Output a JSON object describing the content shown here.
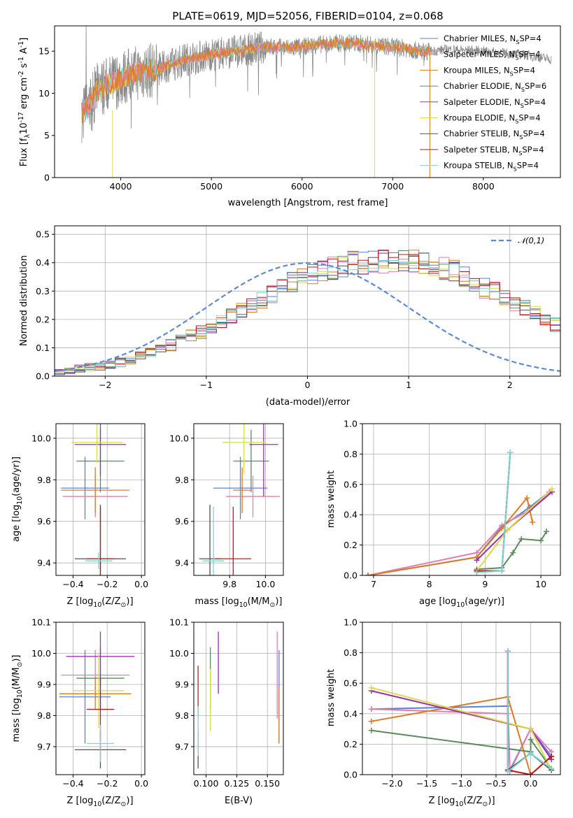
{
  "colors": {
    "Chabrier MILES": "#5b7fd6",
    "Salpeter MILES": "#e07fb0",
    "Kroupa MILES": "#dd7a22",
    "Chabrier ELODIE": "#5b8a5b",
    "Salpeter ELODIE": "#9a30b0",
    "Kroupa ELODIE": "#dada4a",
    "Chabrier STELIB": "#505050",
    "Salpeter STELIB": "#c01818",
    "Kroupa STELIB": "#7ad6d6"
  },
  "chart_data": [
    {
      "type": "line",
      "title": "PLATE=0619, MJD=52056, FIBERID=0104, z=0.068",
      "xlabel": "wavelength [Angstrom, rest frame]",
      "ylabel": "Flux [f_λ10^{-17} erg cm^{-2} s^{-1} A^{-1}]",
      "xlim": [
        3270,
        8850
      ],
      "ylim": [
        0,
        18
      ],
      "xticks": [
        4000,
        5000,
        6000,
        7000,
        8000
      ],
      "yticks": [
        0,
        5,
        10,
        15
      ],
      "legend": [
        "Chabrier MILES, N_SSP=4",
        "Salpeter MILES, N_SSP=4",
        "Kroupa MILES, N_SSP=4",
        "Chabrier ELODIE, N_SSP=6",
        "Salpeter ELODIE, N_SSP=4",
        "Kroupa ELODIE, N_SSP=4",
        "Chabrier STELIB, N_SSP=4",
        "Salpeter STELIB, N_SSP=4",
        "Kroupa STELIB, N_SSP=4"
      ],
      "legend_placement": "right",
      "spectrum_continuum": [
        [
          3570,
          7.5
        ],
        [
          3650,
          8.5
        ],
        [
          3750,
          10.5
        ],
        [
          3850,
          11.0
        ],
        [
          3950,
          11.5
        ],
        [
          4050,
          12.0
        ],
        [
          4200,
          12.5
        ],
        [
          4400,
          12.8
        ],
        [
          4700,
          14.0
        ],
        [
          5000,
          14.6
        ],
        [
          5300,
          15.0
        ],
        [
          5600,
          15.5
        ],
        [
          5900,
          15.4
        ],
        [
          6200,
          15.8
        ],
        [
          6500,
          16.0
        ],
        [
          6800,
          15.7
        ],
        [
          7100,
          15.4
        ],
        [
          7300,
          15.0
        ],
        [
          7410,
          15.0
        ]
      ],
      "gray_extension": [
        [
          7410,
          15.0
        ],
        [
          7600,
          15.2
        ],
        [
          8000,
          15.0
        ],
        [
          8500,
          14.5
        ],
        [
          8750,
          14.0
        ]
      ]
    },
    {
      "type": "line",
      "xlabel": "(data-model)/error",
      "ylabel": "Normed distribution",
      "xlim": [
        -2.5,
        2.5
      ],
      "ylim": [
        0,
        0.53
      ],
      "xticks": [
        -2,
        -1,
        0,
        1,
        2
      ],
      "yticks": [
        0.0,
        0.1,
        0.2,
        0.3,
        0.4,
        0.5
      ],
      "grid": true,
      "legend": [
        "𝒩(0,1)"
      ],
      "legend_placement": "top-right",
      "bin_width": 0.1,
      "bin_start": -2.5,
      "hist_base": [
        0.02,
        0.02,
        0.025,
        0.03,
        0.035,
        0.04,
        0.05,
        0.06,
        0.07,
        0.08,
        0.095,
        0.11,
        0.125,
        0.14,
        0.155,
        0.17,
        0.19,
        0.21,
        0.23,
        0.25,
        0.27,
        0.29,
        0.31,
        0.33,
        0.35,
        0.36,
        0.37,
        0.38,
        0.39,
        0.4,
        0.4,
        0.4,
        0.405,
        0.41,
        0.41,
        0.41,
        0.4,
        0.39,
        0.38,
        0.37,
        0.35,
        0.33,
        0.31,
        0.3,
        0.28,
        0.26,
        0.24,
        0.22,
        0.2,
        0.18,
        0.165,
        0.15,
        0.135,
        0.12,
        0.105,
        0.095,
        0.085,
        0.075,
        0.065,
        0.055,
        0.05,
        0.045,
        0.04,
        0.035,
        0.03,
        0.028,
        0.025,
        0.022,
        0.02,
        0.02
      ]
    },
    {
      "type": "scatter",
      "xlabel": "Z [log10(Z/Z⊙)]",
      "ylabel": "age  [log10(age/yr)]",
      "xlim": [
        -0.5,
        0.02
      ],
      "ylim": [
        9.34,
        10.07
      ],
      "xticks": [
        -0.4,
        -0.2,
        0.0
      ],
      "yticks": [
        9.4,
        9.6,
        9.8,
        10.0
      ],
      "grid": true,
      "points": [
        {
          "model": "Chabrier MILES",
          "x": -0.33,
          "y": 9.76,
          "xerr": 0.14,
          "yerr": 0.15
        },
        {
          "model": "Salpeter MILES",
          "x": -0.27,
          "y": 9.72,
          "xerr": 0.19,
          "yerr": 0.1
        },
        {
          "model": "Kroupa MILES",
          "x": -0.27,
          "y": 9.75,
          "xerr": 0.2,
          "yerr": 0.11
        },
        {
          "model": "Chabrier ELODIE",
          "x": -0.24,
          "y": 9.89,
          "xerr": 0.14,
          "yerr": 0.15
        },
        {
          "model": "Salpeter ELODIE",
          "x": -0.24,
          "y": 9.97,
          "xerr": 0.15,
          "yerr": 0.15
        },
        {
          "model": "Kroupa ELODIE",
          "x": -0.26,
          "y": 9.98,
          "xerr": 0.15,
          "yerr": 0.1
        },
        {
          "model": "Chabrier STELIB",
          "x": -0.24,
          "y": 9.42,
          "xerr": 0.15,
          "yerr": 0.26
        },
        {
          "model": "Salpeter STELIB",
          "x": -0.24,
          "y": 9.42,
          "xerr": 0.08,
          "yerr": 0.25
        },
        {
          "model": "Kroupa STELIB",
          "x": -0.25,
          "y": 9.41,
          "xerr": 0.08,
          "yerr": 0.04
        }
      ]
    },
    {
      "type": "scatter",
      "xlabel": "mass [log10(M/M⊙)]",
      "ylabel": "",
      "xlim": [
        9.6,
        10.1
      ],
      "ylim": [
        9.34,
        10.07
      ],
      "xticks": [
        9.8,
        10.0
      ],
      "yticks": [
        9.4,
        9.6,
        9.8,
        10.0
      ],
      "grid": true,
      "points": [
        {
          "model": "Chabrier MILES",
          "x": 9.86,
          "y": 9.76,
          "xerr": 0.15,
          "yerr": 0.15
        },
        {
          "model": "Salpeter MILES",
          "x": 9.93,
          "y": 9.72,
          "xerr": 0.15,
          "yerr": 0.1
        },
        {
          "model": "Kroupa MILES",
          "x": 9.87,
          "y": 9.75,
          "xerr": 0.05,
          "yerr": 0.11
        },
        {
          "model": "Chabrier ELODIE",
          "x": 9.92,
          "y": 9.89,
          "xerr": 0.1,
          "yerr": 0.15
        },
        {
          "model": "Salpeter ELODIE",
          "x": 9.99,
          "y": 9.97,
          "xerr": 0.08,
          "yerr": 0.25
        },
        {
          "model": "Kroupa ELODIE",
          "x": 9.88,
          "y": 9.98,
          "xerr": 0.12,
          "yerr": 0.15
        },
        {
          "model": "Chabrier STELIB",
          "x": 9.69,
          "y": 9.42,
          "xerr": 0.06,
          "yerr": 0.26
        },
        {
          "model": "Salpeter STELIB",
          "x": 9.82,
          "y": 9.42,
          "xerr": 0.1,
          "yerr": 0.25
        },
        {
          "model": "Kroupa STELIB",
          "x": 9.71,
          "y": 9.41,
          "xerr": 0.06,
          "yerr": 0.26
        }
      ]
    },
    {
      "type": "line",
      "xlabel": "age  [log10(age/yr)]",
      "ylabel": "mass weight",
      "xlim": [
        6.8,
        10.35
      ],
      "ylim": [
        0,
        1
      ],
      "xticks": [
        7,
        8,
        9,
        10
      ],
      "yticks": [
        0.0,
        0.2,
        0.4,
        0.6,
        0.8,
        1.0
      ],
      "grid": true,
      "series": [
        {
          "model": "Chabrier MILES",
          "x": [
            6.9,
            8.85,
            9.3,
            9.8,
            10.15
          ],
          "y": [
            0.0,
            0.12,
            0.32,
            0.45,
            0.55
          ]
        },
        {
          "model": "Salpeter MILES",
          "x": [
            6.9,
            8.85,
            9.3,
            9.8,
            10.15
          ],
          "y": [
            0.0,
            0.15,
            0.33,
            0.43,
            0.55
          ]
        },
        {
          "model": "Kroupa MILES",
          "x": [
            6.9,
            8.85,
            9.3,
            9.75,
            9.85
          ],
          "y": [
            0.0,
            0.12,
            0.31,
            0.51,
            0.35
          ]
        },
        {
          "model": "Chabrier ELODIE",
          "x": [
            8.85,
            9.3,
            9.5,
            9.65,
            10.0,
            10.1
          ],
          "y": [
            0.04,
            0.05,
            0.15,
            0.24,
            0.23,
            0.29
          ]
        },
        {
          "model": "Salpeter ELODIE",
          "x": [
            8.85,
            9.4,
            10.2
          ],
          "y": [
            0.1,
            0.3,
            0.55
          ]
        },
        {
          "model": "Kroupa ELODIE",
          "x": [
            8.85,
            9.4,
            10.2
          ],
          "y": [
            0.03,
            0.3,
            0.57
          ]
        },
        {
          "model": "Chabrier STELIB",
          "x": [
            8.85,
            9.3,
            9.45
          ],
          "y": [
            0.03,
            0.03,
            0.81
          ]
        },
        {
          "model": "Salpeter STELIB",
          "x": [
            8.85,
            9.3,
            9.45
          ],
          "y": [
            0.03,
            0.03,
            0.81
          ]
        },
        {
          "model": "Kroupa STELIB",
          "x": [
            8.85,
            9.3,
            9.45
          ],
          "y": [
            0.02,
            0.03,
            0.81
          ]
        }
      ]
    },
    {
      "type": "scatter",
      "xlabel": "Z [log10(Z/Z⊙)]",
      "ylabel": "mass [log10(M/M⊙)]",
      "xlim": [
        -0.5,
        0.02
      ],
      "ylim": [
        9.61,
        10.1
      ],
      "xticks": [
        -0.4,
        -0.2,
        0.0
      ],
      "yticks": [
        9.7,
        9.8,
        9.9,
        10.0,
        10.1
      ],
      "grid": true,
      "points": [
        {
          "model": "Chabrier MILES",
          "x": -0.33,
          "y": 9.86,
          "xerr": 0.15,
          "yerr": 0.15
        },
        {
          "model": "Salpeter MILES",
          "x": -0.27,
          "y": 9.93,
          "xerr": 0.2,
          "yerr": 0.08
        },
        {
          "model": "Kroupa MILES",
          "x": -0.27,
          "y": 9.87,
          "xerr": 0.21,
          "yerr": 0.05
        },
        {
          "model": "Chabrier ELODIE",
          "x": -0.24,
          "y": 9.92,
          "xerr": 0.14,
          "yerr": 0.1
        },
        {
          "model": "Salpeter ELODIE",
          "x": -0.24,
          "y": 9.99,
          "xerr": 0.2,
          "yerr": 0.08
        },
        {
          "model": "Kroupa ELODIE",
          "x": -0.25,
          "y": 9.88,
          "xerr": 0.15,
          "yerr": 0.12
        },
        {
          "model": "Chabrier STELIB",
          "x": -0.24,
          "y": 9.69,
          "xerr": 0.15,
          "yerr": 0.06
        },
        {
          "model": "Salpeter STELIB",
          "x": -0.24,
          "y": 9.82,
          "xerr": 0.08,
          "yerr": 0.1
        },
        {
          "model": "Kroupa STELIB",
          "x": -0.24,
          "y": 9.71,
          "xerr": 0.08,
          "yerr": 0.06
        }
      ]
    },
    {
      "type": "scatter",
      "xlabel": "E(B-V)",
      "ylabel": "",
      "xlim": [
        0.09,
        0.163
      ],
      "ylim": [
        9.61,
        10.1
      ],
      "xticks": [
        0.1,
        0.125,
        0.15
      ],
      "yticks": [
        9.7,
        9.8,
        9.9,
        10.0,
        10.1
      ],
      "grid": true,
      "points": [
        {
          "model": "Chabrier MILES",
          "x": 0.1595,
          "y": 9.86,
          "xerr": 0.0,
          "yerr": 0.15
        },
        {
          "model": "Salpeter MILES",
          "x": 0.158,
          "y": 9.93,
          "xerr": 0.0,
          "yerr": 0.14
        },
        {
          "model": "Kroupa MILES",
          "x": 0.1595,
          "y": 9.8,
          "xerr": 0.0,
          "yerr": 0.09
        },
        {
          "model": "Chabrier ELODIE",
          "x": 0.1035,
          "y": 9.92,
          "xerr": 0.0,
          "yerr": 0.1
        },
        {
          "model": "Salpeter ELODIE",
          "x": 0.11,
          "y": 9.97,
          "xerr": 0.0,
          "yerr": 0.1
        },
        {
          "model": "Kroupa ELODIE",
          "x": 0.1035,
          "y": 9.85,
          "xerr": 0.0,
          "yerr": 0.1
        },
        {
          "model": "Chabrier STELIB",
          "x": 0.0935,
          "y": 9.69,
          "xerr": 0.0,
          "yerr": 0.06
        },
        {
          "model": "Salpeter STELIB",
          "x": 0.0935,
          "y": 9.88,
          "xerr": 0.0,
          "yerr": 0.08
        },
        {
          "model": "Kroupa STELIB",
          "x": 0.0935,
          "y": 9.75,
          "xerr": 0.0,
          "yerr": 0.08
        }
      ]
    },
    {
      "type": "line",
      "xlabel": "Z [log10(Z/Z⊙)]",
      "ylabel": "mass weight",
      "xlim": [
        -2.43,
        0.43
      ],
      "ylim": [
        0,
        1
      ],
      "xticks": [
        -2.0,
        -1.5,
        -1.0,
        -0.5,
        0.0
      ],
      "yticks": [
        0.0,
        0.2,
        0.4,
        0.6,
        0.8,
        1.0
      ],
      "grid": true,
      "series": [
        {
          "model": "Chabrier MILES",
          "x": [
            -2.3,
            -0.33,
            -0.3,
            0.0,
            0.3
          ],
          "y": [
            0.43,
            0.45,
            0.03,
            0.3,
            0.12
          ]
        },
        {
          "model": "Salpeter MILES",
          "x": [
            -2.3,
            -0.33,
            -0.3,
            0.0,
            0.3
          ],
          "y": [
            0.43,
            0.4,
            0.02,
            0.3,
            0.15
          ]
        },
        {
          "model": "Kroupa MILES",
          "x": [
            -2.3,
            -0.33,
            0.0,
            0.3
          ],
          "y": [
            0.35,
            0.51,
            0.0,
            0.12
          ]
        },
        {
          "model": "Chabrier ELODIE",
          "x": [
            -2.3,
            0.0,
            0.0,
            0.3
          ],
          "y": [
            0.29,
            0.15,
            0.23,
            0.04
          ]
        },
        {
          "model": "Salpeter ELODIE",
          "x": [
            -2.3,
            0.0,
            0.3
          ],
          "y": [
            0.55,
            0.3,
            0.1
          ]
        },
        {
          "model": "Kroupa ELODIE",
          "x": [
            -2.3,
            0.0,
            0.3
          ],
          "y": [
            0.57,
            0.3,
            0.03
          ]
        },
        {
          "model": "Chabrier STELIB",
          "x": [
            -0.33,
            -0.33,
            0.0,
            0.3
          ],
          "y": [
            0.81,
            0.03,
            0.14,
            0.03
          ]
        },
        {
          "model": "Salpeter STELIB",
          "x": [
            -0.33,
            -0.33,
            0.0,
            0.3
          ],
          "y": [
            0.81,
            0.03,
            0.0,
            0.12
          ]
        },
        {
          "model": "Kroupa STELIB",
          "x": [
            -0.33,
            -0.33,
            0.0,
            0.3
          ],
          "y": [
            0.81,
            0.02,
            0.14,
            0.04
          ]
        }
      ]
    }
  ]
}
